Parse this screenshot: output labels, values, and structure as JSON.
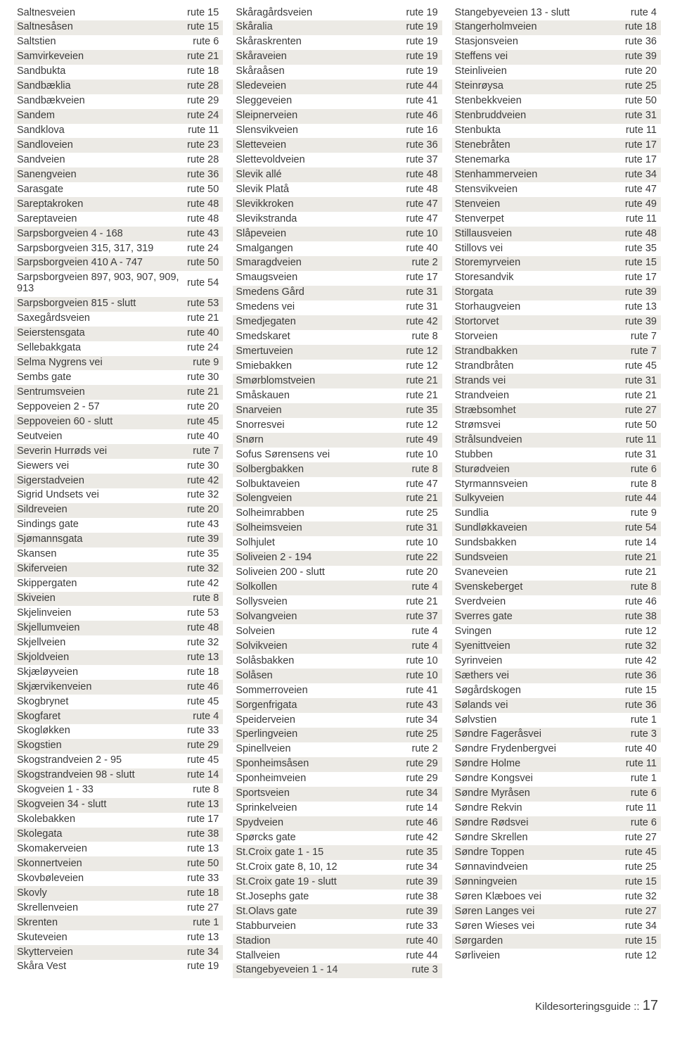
{
  "footer": {
    "label": "Kildesorteringsguide  ::",
    "page": "17"
  },
  "columns": [
    [
      [
        "Saltnesveien",
        "rute 15"
      ],
      [
        "Saltnesåsen",
        "rute 15"
      ],
      [
        "Saltstien",
        "rute 6"
      ],
      [
        "Samvirkeveien",
        "rute 21"
      ],
      [
        "Sandbukta",
        "rute 18"
      ],
      [
        "Sandbæklia",
        "rute 28"
      ],
      [
        "Sandbækveien",
        "rute 29"
      ],
      [
        "Sandem",
        "rute 24"
      ],
      [
        "Sandklova",
        "rute 11"
      ],
      [
        "Sandloveien",
        "rute 23"
      ],
      [
        "Sandveien",
        "rute 28"
      ],
      [
        "Sanengveien",
        "rute 36"
      ],
      [
        "Sarasgate",
        "rute 50"
      ],
      [
        "Sareptakroken",
        "rute 48"
      ],
      [
        "Sareptaveien",
        "rute 48"
      ],
      [
        "Sarpsborgveien 4 - 168",
        "rute 43"
      ],
      [
        "Sarpsborgveien 315, 317, 319",
        "rute 24"
      ],
      [
        "Sarpsborgveien 410 A - 747",
        "rute 50"
      ],
      [
        "Sarpsborgveien 897, 903, 907, 909, 913",
        "rute 54"
      ],
      [
        "Sarpsborgveien 815 - slutt",
        "rute 53"
      ],
      [
        "Saxegårdsveien",
        "rute 21"
      ],
      [
        "Seierstensgata",
        "rute 40"
      ],
      [
        "Sellebakkgata",
        "rute 24"
      ],
      [
        "Selma Nygrens vei",
        "rute 9"
      ],
      [
        "Sembs gate",
        "rute 30"
      ],
      [
        "Sentrumsveien",
        "rute 21"
      ],
      [
        "Seppoveien 2 - 57",
        "rute 20"
      ],
      [
        "Seppoveien 60 - slutt",
        "rute 45"
      ],
      [
        "Seutveien",
        "rute 40"
      ],
      [
        "Severin Hurrøds vei",
        "rute 7"
      ],
      [
        "Siewers vei",
        "rute 30"
      ],
      [
        "Sigerstadveien",
        "rute 42"
      ],
      [
        "Sigrid Undsets vei",
        "rute 32"
      ],
      [
        "Sildreveien",
        "rute 20"
      ],
      [
        "Sindings gate",
        "rute 43"
      ],
      [
        "Sjømannsgata",
        "rute 39"
      ],
      [
        "Skansen",
        "rute 35"
      ],
      [
        "Skiferveien",
        "rute 32"
      ],
      [
        "Skippergaten",
        "rute 42"
      ],
      [
        "Skiveien",
        "rute 8"
      ],
      [
        "Skjelinveien",
        "rute 53"
      ],
      [
        "Skjellumveien",
        "rute 48"
      ],
      [
        "Skjellveien",
        "rute 32"
      ],
      [
        "Skjoldveien",
        "rute 13"
      ],
      [
        "Skjæløyveien",
        "rute 18"
      ],
      [
        "Skjærvikenveien",
        "rute 46"
      ],
      [
        "Skogbrynet",
        "rute 45"
      ],
      [
        "Skogfaret",
        "rute 4"
      ],
      [
        "Skogløkken",
        "rute 33"
      ],
      [
        "Skogstien",
        "rute 29"
      ],
      [
        "Skogstrandveien 2 - 95",
        "rute 45"
      ],
      [
        "Skogstrandveien 98 - slutt",
        "rute 14"
      ],
      [
        "Skogveien 1 - 33",
        "rute 8"
      ],
      [
        "Skogveien 34 - slutt",
        "rute 13"
      ],
      [
        "Skolebakken",
        "rute 17"
      ],
      [
        "Skolegata",
        "rute 38"
      ],
      [
        "Skomakerveien",
        "rute 13"
      ],
      [
        "Skonnertveien",
        "rute 50"
      ],
      [
        "Skovbøleveien",
        "rute 33"
      ],
      [
        "Skovly",
        "rute 18"
      ],
      [
        "Skrellenveien",
        "rute 27"
      ],
      [
        "Skrenten",
        "rute 1"
      ],
      [
        "Skuteveien",
        "rute 13"
      ],
      [
        "Skytterveien",
        "rute 34"
      ],
      [
        "Skåra Vest",
        "rute 19"
      ]
    ],
    [
      [
        "Skåragårdsveien",
        "rute 19"
      ],
      [
        "Skåralia",
        "rute 19"
      ],
      [
        "Skåraskrenten",
        "rute 19"
      ],
      [
        "Skåraveien",
        "rute 19"
      ],
      [
        "Skåraåsen",
        "rute 19"
      ],
      [
        "Sledeveien",
        "rute 44"
      ],
      [
        "Sleggeveien",
        "rute 41"
      ],
      [
        "Sleipnerveien",
        "rute 46"
      ],
      [
        "Slensvikveien",
        "rute 16"
      ],
      [
        "Sletteveien",
        "rute 36"
      ],
      [
        "Slettevoldveien",
        "rute 37"
      ],
      [
        "Slevik allé",
        "rute 48"
      ],
      [
        "Slevik Platå",
        "rute 48"
      ],
      [
        "Slevikkroken",
        "rute 47"
      ],
      [
        "Slevikstranda",
        "rute 47"
      ],
      [
        "Slåpeveien",
        "rute 10"
      ],
      [
        "Smalgangen",
        "rute 40"
      ],
      [
        "Smaragdveien",
        "rute 2"
      ],
      [
        "Smaugsveien",
        "rute 17"
      ],
      [
        "Smedens Gård",
        "rute 31"
      ],
      [
        "Smedens vei",
        "rute 31"
      ],
      [
        "Smedjegaten",
        "rute 42"
      ],
      [
        "Smedskaret",
        "rute 8"
      ],
      [
        "Smertuveien",
        "rute 12"
      ],
      [
        "Smiebakken",
        "rute 12"
      ],
      [
        "Smørblomstveien",
        "rute 21"
      ],
      [
        "Småskauen",
        "rute 21"
      ],
      [
        "Snarveien",
        "rute 35"
      ],
      [
        "Snorresvei",
        "rute 12"
      ],
      [
        "Snørn",
        "rute 49"
      ],
      [
        "Sofus Sørensens vei",
        "rute 10"
      ],
      [
        "Solbergbakken",
        "rute 8"
      ],
      [
        "Solbuktaveien",
        "rute 47"
      ],
      [
        "Solengveien",
        "rute 21"
      ],
      [
        "Solheimrabben",
        "rute 25"
      ],
      [
        "Solheimsveien",
        "rute 31"
      ],
      [
        "Solhjulet",
        "rute 10"
      ],
      [
        "Soliveien 2 - 194",
        "rute 22"
      ],
      [
        "Soliveien 200 - slutt",
        "rute 20"
      ],
      [
        "Solkollen",
        "rute 4"
      ],
      [
        "Sollysveien",
        "rute 21"
      ],
      [
        "Solvangveien",
        "rute 37"
      ],
      [
        "Solveien",
        "rute 4"
      ],
      [
        "Solvikveien",
        "rute 4"
      ],
      [
        "Solåsbakken",
        "rute 10"
      ],
      [
        "Solåsen",
        "rute 10"
      ],
      [
        "Sommerroveien",
        "rute 41"
      ],
      [
        "Sorgenfrigata",
        "rute 43"
      ],
      [
        "Speiderveien",
        "rute 34"
      ],
      [
        "Sperlingveien",
        "rute 25"
      ],
      [
        "Spinellveien",
        "rute 2"
      ],
      [
        "Sponheimsåsen",
        "rute 29"
      ],
      [
        "Sponheimveien",
        "rute 29"
      ],
      [
        "Sportsveien",
        "rute 34"
      ],
      [
        "Sprinkelveien",
        "rute 14"
      ],
      [
        "Spydveien",
        "rute 46"
      ],
      [
        "Spørcks gate",
        "rute 42"
      ],
      [
        "St.Croix gate 1 - 15",
        "rute 35"
      ],
      [
        "St.Croix gate  8, 10, 12",
        "rute 34"
      ],
      [
        "St.Croix gate 19 - slutt",
        "rute 39"
      ],
      [
        "St.Josephs gate",
        "rute 38"
      ],
      [
        "St.Olavs gate",
        "rute 39"
      ],
      [
        "Stabburveien",
        "rute 33"
      ],
      [
        "Stadion",
        "rute 40"
      ],
      [
        "Stallveien",
        "rute 44"
      ],
      [
        "Stangebyeveien 1 - 14",
        "rute 3"
      ]
    ],
    [
      [
        "Stangebyeveien 13 - slutt",
        "rute 4"
      ],
      [
        "Stangerholmveien",
        "rute 18"
      ],
      [
        "Stasjonsveien",
        "rute 36"
      ],
      [
        "Steffens vei",
        "rute 39"
      ],
      [
        "Steinliveien",
        "rute 20"
      ],
      [
        "Steinrøysa",
        "rute 25"
      ],
      [
        "Stenbekkveien",
        "rute 50"
      ],
      [
        "Stenbruddveien",
        "rute 31"
      ],
      [
        "Stenbukta",
        "rute 11"
      ],
      [
        "Stenebråten",
        "rute 17"
      ],
      [
        "Stenemarka",
        "rute 17"
      ],
      [
        "Stenhammerveien",
        "rute 34"
      ],
      [
        "Stensvikveien",
        "rute 47"
      ],
      [
        "Stenveien",
        "rute 49"
      ],
      [
        "Stenverpet",
        "rute 11"
      ],
      [
        "Stillausveien",
        "rute 48"
      ],
      [
        "Stillovs vei",
        "rute 35"
      ],
      [
        "Storemyrveien",
        "rute 15"
      ],
      [
        "Storesandvik",
        "rute 17"
      ],
      [
        "Storgata",
        "rute 39"
      ],
      [
        "Storhaugveien",
        "rute 13"
      ],
      [
        "Stortorvet",
        "rute 39"
      ],
      [
        "Storveien",
        "rute 7"
      ],
      [
        "Strandbakken",
        "rute 7"
      ],
      [
        "Strandbråten",
        "rute 45"
      ],
      [
        "Strands vei",
        "rute 31"
      ],
      [
        "Strandveien",
        "rute 21"
      ],
      [
        "Stræbsomhet",
        "rute 27"
      ],
      [
        "Strømsvei",
        "rute 50"
      ],
      [
        "Strålsundveien",
        "rute 11"
      ],
      [
        "Stubben",
        "rute 31"
      ],
      [
        "Sturødveien",
        "rute 6"
      ],
      [
        "Styrmannsveien",
        "rute 8"
      ],
      [
        "Sulkyveien",
        "rute 44"
      ],
      [
        "Sundlia",
        "rute 9"
      ],
      [
        "Sundløkkaveien",
        "rute 54"
      ],
      [
        "Sundsbakken",
        "rute 14"
      ],
      [
        "Sundsveien",
        "rute 21"
      ],
      [
        "Svaneveien",
        "rute 21"
      ],
      [
        "Svenskeberget",
        "rute 8"
      ],
      [
        "Sverdveien",
        "rute 46"
      ],
      [
        "Sverres gate",
        "rute 38"
      ],
      [
        "Svingen",
        "rute 12"
      ],
      [
        "Syenittveien",
        "rute 32"
      ],
      [
        "Syrinveien",
        "rute 42"
      ],
      [
        "Sæthers vei",
        "rute 36"
      ],
      [
        "Søgårdskogen",
        "rute 15"
      ],
      [
        "Sølands vei",
        "rute 36"
      ],
      [
        "Sølvstien",
        "rute 1"
      ],
      [
        "Søndre Fageråsvei",
        "rute 3"
      ],
      [
        "Søndre Frydenbergvei",
        "rute 40"
      ],
      [
        "Søndre Holme",
        "rute 11"
      ],
      [
        "Søndre Kongsvei",
        "rute 1"
      ],
      [
        "Søndre Myråsen",
        "rute 6"
      ],
      [
        "Søndre Rekvin",
        "rute 11"
      ],
      [
        "Søndre Rødsvei",
        "rute 6"
      ],
      [
        "Søndre Skrellen",
        "rute 27"
      ],
      [
        "Søndre Toppen",
        "rute 45"
      ],
      [
        "Sønnavindveien",
        "rute 25"
      ],
      [
        "Sønningveien",
        "rute 15"
      ],
      [
        "Søren Klæboes vei",
        "rute 32"
      ],
      [
        "Søren Langes vei",
        "rute 27"
      ],
      [
        "Søren Wieses vei",
        "rute 34"
      ],
      [
        "Sørgarden",
        "rute 15"
      ],
      [
        "Sørliveien",
        "rute 12"
      ]
    ]
  ]
}
